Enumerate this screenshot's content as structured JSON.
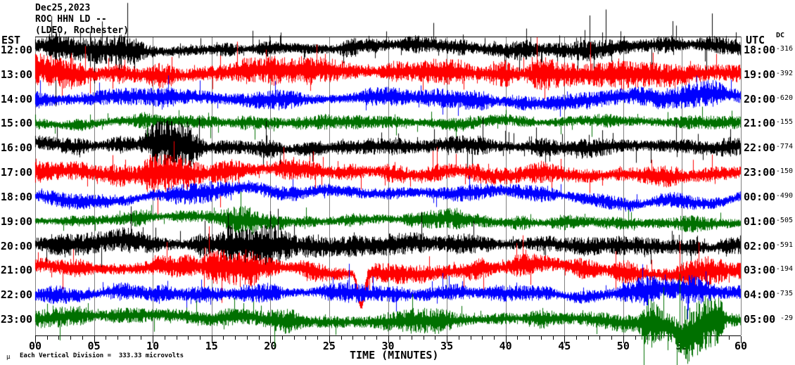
{
  "header": {
    "date": "Dec25,2023",
    "station": "ROC HHN LD --",
    "network": "(LDEO, Rochester)"
  },
  "axes": {
    "left_label": "EST",
    "right_label": "UTC",
    "dc_label": "DC",
    "x_title": "TIME (MINUTES)",
    "x_major_ticks": [
      "00",
      "05",
      "10",
      "15",
      "20",
      "25",
      "30",
      "35",
      "40",
      "45",
      "50",
      "55",
      "60"
    ],
    "x_major_step_minutes": 5,
    "x_minor_step_minutes": 1
  },
  "footer": {
    "mu": "μ",
    "scale_text": "Each Vertical Division =  333.33 microvolts"
  },
  "colors": {
    "black": "#000000",
    "red": "#ff0000",
    "blue": "#0000ff",
    "green": "#007000",
    "grid": "#808080"
  },
  "chart_data": {
    "type": "line",
    "title": "Helicorder ROC HHN LD -- (LDEO, Rochester) Dec25,2023",
    "xlabel": "TIME (MINUTES)",
    "x_range_minutes": [
      0,
      60
    ],
    "grid": true,
    "scale_note": "Each Vertical Division = 333.33 microvolts",
    "rows": [
      {
        "est": "12:00",
        "utc": "18:00",
        "dc": -316,
        "color": "#000000",
        "noise": 7,
        "drift": 5,
        "spike_p": 0.05,
        "spike_len": 3.0,
        "events": [
          [
            1.5,
            8.5,
            1.6
          ],
          [
            43,
            47,
            1.35
          ]
        ],
        "dips": [],
        "seed": 101
      },
      {
        "est": "13:00",
        "utc": "19:00",
        "dc": -392,
        "color": "#ff0000",
        "noise": 9,
        "drift": 6,
        "spike_p": 0.03,
        "spike_len": 2.2,
        "events": [
          [
            0,
            3,
            1.4
          ],
          [
            20,
            27,
            1.25
          ],
          [
            40,
            50,
            1.3
          ]
        ],
        "dips": [],
        "seed": 202
      },
      {
        "est": "14:00",
        "utc": "20:00",
        "dc": -620,
        "color": "#0000ff",
        "noise": 7,
        "drift": 7,
        "spike_p": 0.02,
        "spike_len": 2.0,
        "events": [
          [
            0,
            4,
            1.25
          ],
          [
            53,
            60,
            1.3
          ]
        ],
        "dips": [],
        "seed": 303
      },
      {
        "est": "15:00",
        "utc": "21:00",
        "dc": -155,
        "color": "#007000",
        "noise": 5,
        "drift": 5,
        "spike_p": 0.03,
        "spike_len": 2.4,
        "events": [
          [
            9,
            11,
            1.5
          ],
          [
            22.5,
            24.5,
            1.4
          ]
        ],
        "dips": [],
        "seed": 404
      },
      {
        "est": "16:00",
        "utc": "22:00",
        "dc": -774,
        "color": "#000000",
        "noise": 7,
        "drift": 6,
        "spike_p": 0.035,
        "spike_len": 2.6,
        "events": [
          [
            9.5,
            14,
            2.4
          ],
          [
            26,
            29,
            1.3
          ]
        ],
        "dips": [],
        "seed": 505
      },
      {
        "est": "17:00",
        "utc": "23:00",
        "dc": -150,
        "color": "#ff0000",
        "noise": 8,
        "drift": 7,
        "spike_p": 0.03,
        "spike_len": 2.2,
        "events": [
          [
            9.5,
            14,
            1.9
          ],
          [
            15,
            18,
            1.5
          ]
        ],
        "dips": [],
        "seed": 606
      },
      {
        "est": "18:00",
        "utc": "00:00",
        "dc": -490,
        "color": "#0000ff",
        "noise": 6,
        "drift": 11,
        "spike_p": 0.02,
        "spike_len": 2.0,
        "events": [
          [
            12,
            16,
            1.3
          ]
        ],
        "dips": [],
        "seed": 707
      },
      {
        "est": "19:00",
        "utc": "01:00",
        "dc": -505,
        "color": "#007000",
        "noise": 6,
        "drift": 6,
        "spike_p": 0.025,
        "spike_len": 2.2,
        "events": [
          [
            16.5,
            21,
            1.7
          ],
          [
            32,
            36,
            1.3
          ]
        ],
        "dips": [],
        "seed": 808
      },
      {
        "est": "20:00",
        "utc": "02:00",
        "dc": -591,
        "color": "#000000",
        "noise": 8,
        "drift": 6,
        "spike_p": 0.03,
        "spike_len": 2.2,
        "events": [
          [
            8,
            10,
            1.3
          ],
          [
            16.5,
            21.5,
            2.0
          ]
        ],
        "dips": [],
        "seed": 909
      },
      {
        "est": "21:00",
        "utc": "03:00",
        "dc": -194,
        "color": "#ff0000",
        "noise": 8,
        "drift": 8,
        "spike_p": 0.03,
        "spike_len": 2.2,
        "events": [
          [
            15,
            18.5,
            1.7
          ],
          [
            55,
            58,
            1.35
          ]
        ],
        "dips": [
          {
            "m": 27.7,
            "w": 0.4,
            "depth": 46
          }
        ],
        "seed": 1010
      },
      {
        "est": "22:00",
        "utc": "04:00",
        "dc": -735,
        "color": "#0000ff",
        "noise": 7,
        "drift": 8,
        "spike_p": 0.025,
        "spike_len": 2.0,
        "events": [
          [
            13,
            16,
            1.35
          ],
          [
            50,
            57,
            1.5
          ]
        ],
        "dips": [],
        "seed": 1111
      },
      {
        "est": "23:00",
        "utc": "05:00",
        "dc": -29,
        "color": "#007000",
        "noise": 7,
        "drift": 7,
        "spike_p": 0.03,
        "spike_len": 2.2,
        "events": [
          [
            20,
            35,
            1.25
          ],
          [
            52,
            58,
            3.6
          ]
        ],
        "dips": [
          {
            "m": 55.4,
            "w": 1.3,
            "depth": 22
          }
        ],
        "seed": 1212
      }
    ]
  }
}
